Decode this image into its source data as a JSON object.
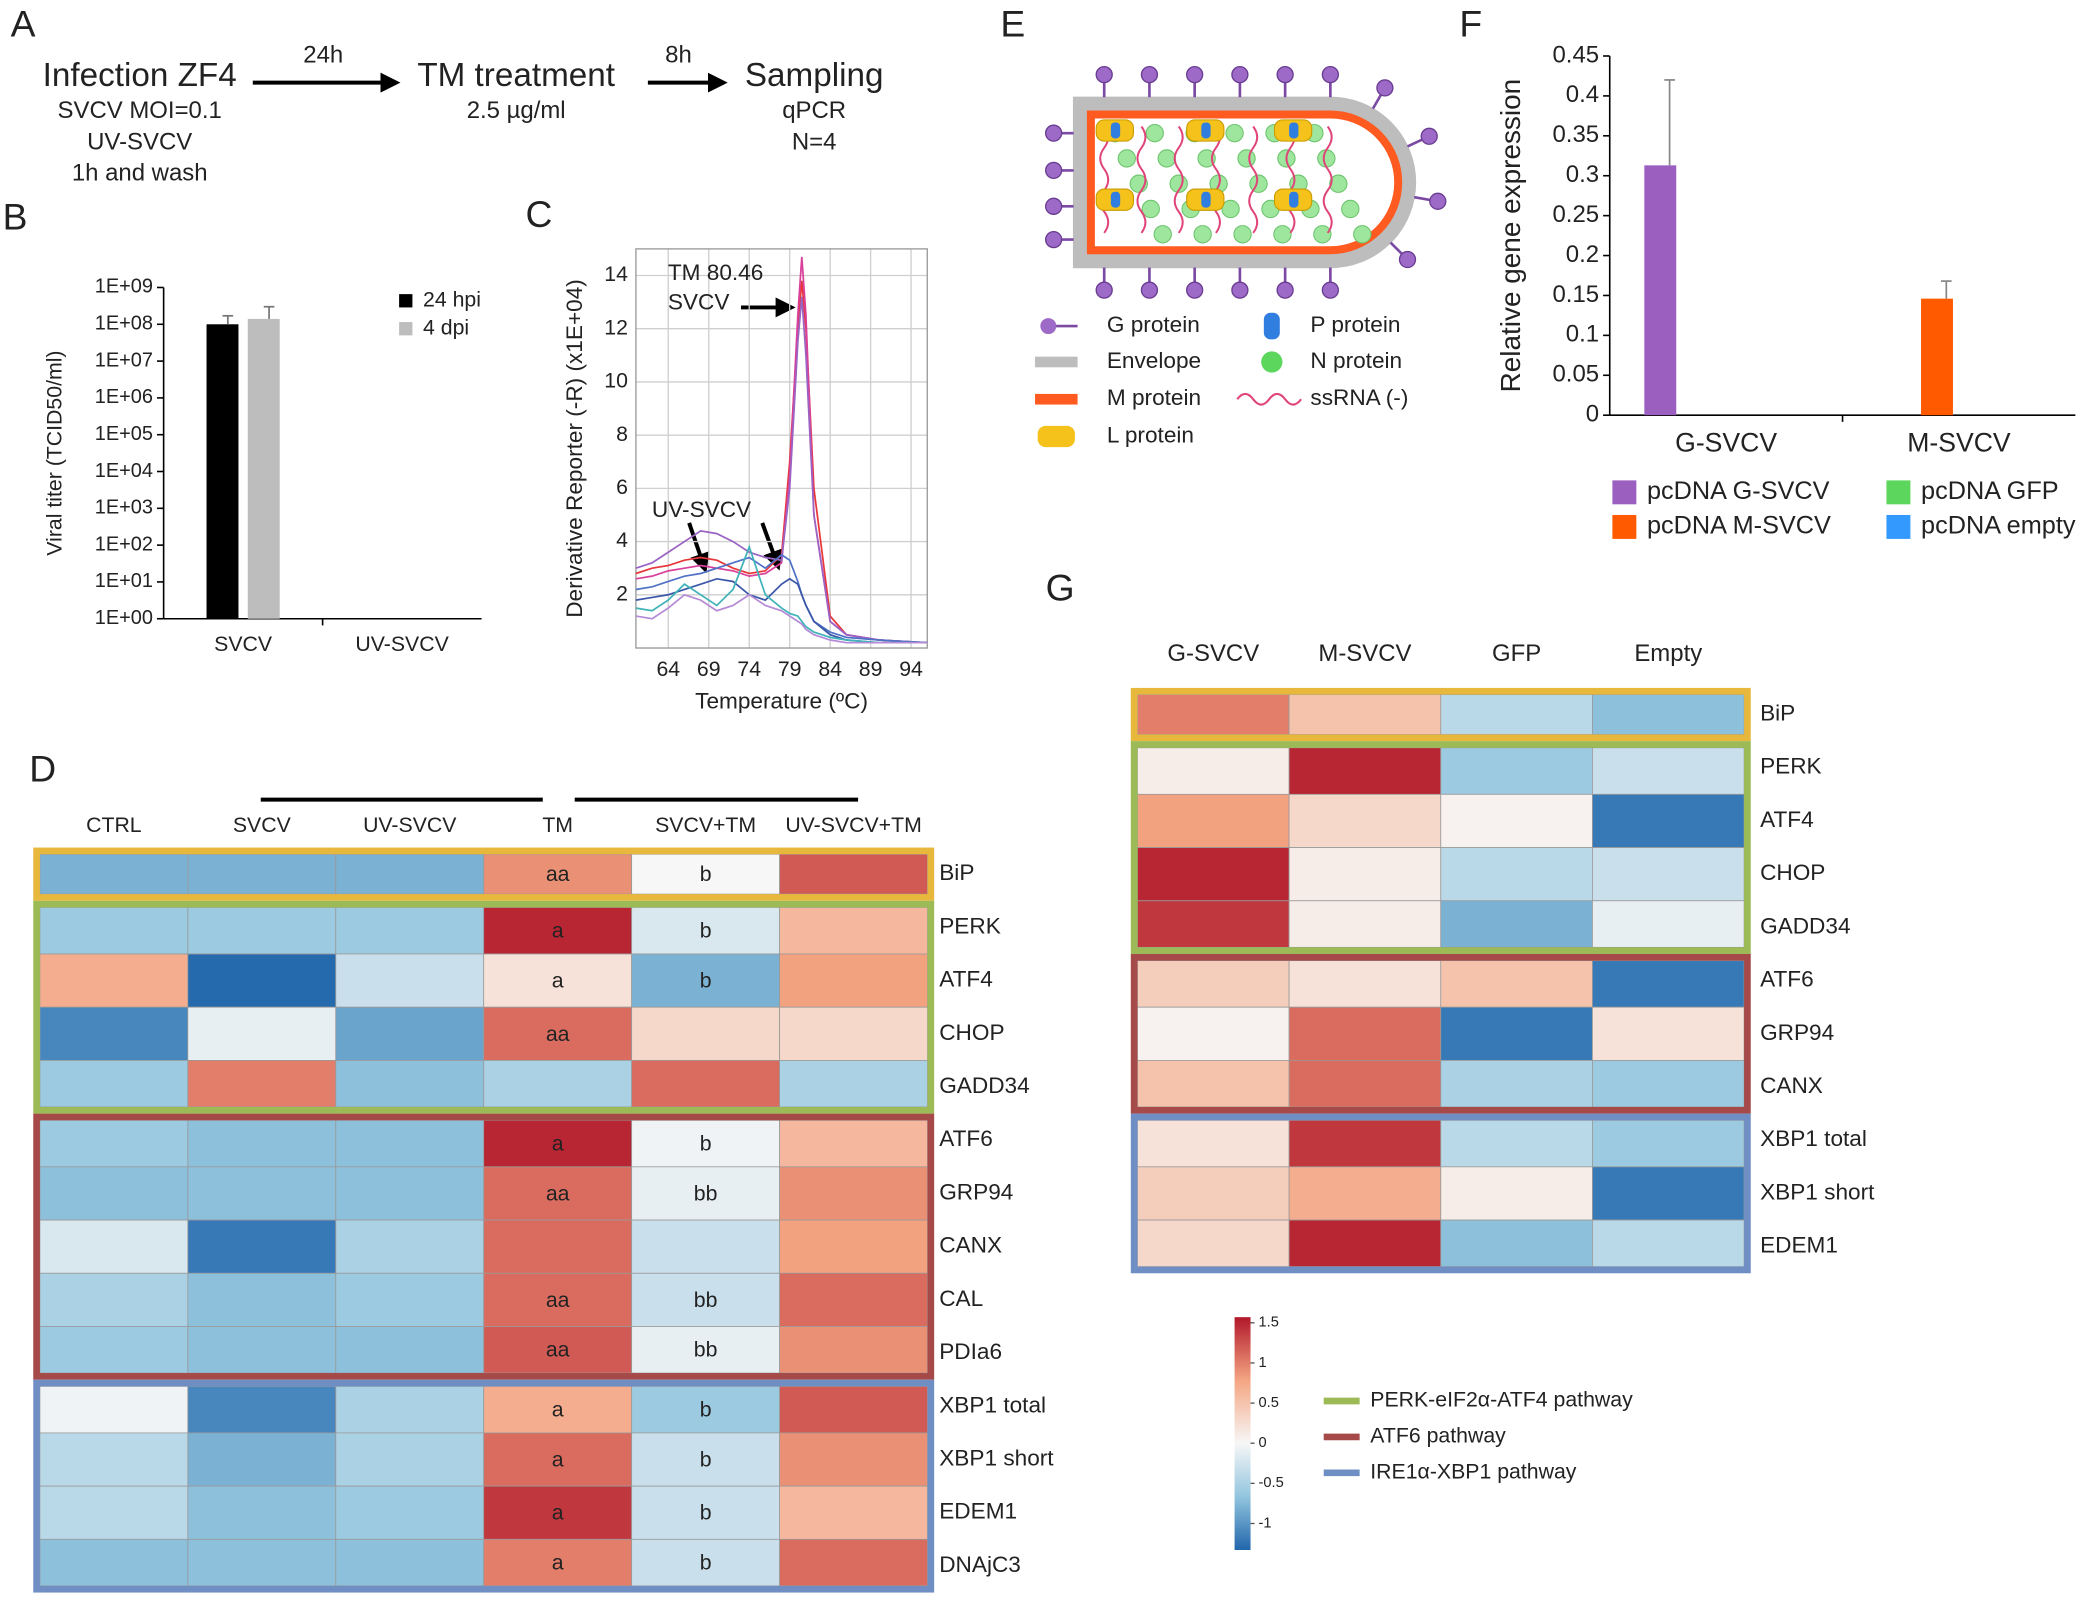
{
  "panel_labels": [
    "A",
    "B",
    "C",
    "D",
    "E",
    "F",
    "G"
  ],
  "workflow": {
    "steps": [
      {
        "title": "Infection ZF4",
        "lines": [
          "SVCV MOI=0.1",
          "UV-SVCV",
          "1h and wash"
        ]
      },
      {
        "title": "TM treatment",
        "lines": [
          "2.5 µg/ml"
        ]
      },
      {
        "title": "Sampling",
        "lines": [
          "qPCR",
          "N=4"
        ]
      }
    ],
    "intervals": [
      "24h",
      "8h"
    ]
  },
  "virus_legend": [
    "G protein",
    "Envelope",
    "M protein",
    "L protein",
    "P protein",
    "N protein",
    "ssRNA (-)"
  ],
  "pathways": [
    {
      "name": "PERK-eIF2α-ATF4 pathway",
      "color": "#9cba55"
    },
    {
      "name": "ATF6 pathway",
      "color": "#a54a48"
    },
    {
      "name": "IRE1α-XBP1 pathway",
      "color": "#6f8fc4"
    }
  ],
  "chart_data": [
    {
      "type": "bar",
      "ylabel": "Viral titer (TCID50/ml)",
      "categories": [
        "SVCV",
        "UV-SVCV"
      ],
      "series": [
        {
          "name": "24 hpi",
          "color": "#000000",
          "values": [
            100000000,
            null
          ],
          "errors": [
            70000000,
            null
          ]
        },
        {
          "name": "4 dpi",
          "color": "#bdbdbd",
          "values": [
            140000000,
            null
          ],
          "errors": [
            160000000,
            null
          ]
        }
      ],
      "ylim": [
        1,
        1000000000
      ],
      "yticks": [
        {
          "value": 1,
          "label": "1E+00"
        },
        {
          "value": 10,
          "label": "1E+01"
        },
        {
          "value": 100,
          "label": "1E+02"
        },
        {
          "value": 1000,
          "label": "1E+03"
        },
        {
          "value": 10000,
          "label": "1E+04"
        },
        {
          "value": 100000,
          "label": "1E+05"
        },
        {
          "value": 1000000,
          "label": "1E+06"
        },
        {
          "value": 10000000,
          "label": "1E+07"
        },
        {
          "value": 100000000,
          "label": "1E+08"
        },
        {
          "value": 1000000000,
          "label": "1E+09"
        }
      ],
      "log_y": true,
      "legend": "upper right"
    },
    {
      "type": "line",
      "annotations": [
        "TM 80.46",
        "SVCV",
        "UV-SVCV"
      ],
      "xlabel": "Temperature (ºC)",
      "ylabel": "Derivative Reporter (-R) (x1E+04)",
      "x": [
        60,
        62,
        64,
        66,
        68,
        70,
        72,
        74,
        76,
        78,
        79,
        80,
        80.5,
        81,
        82,
        84,
        86,
        90,
        96
      ],
      "series": [
        {
          "color": "#e8373a",
          "values": [
            2.8,
            3.0,
            3.1,
            3.3,
            3.4,
            3.3,
            3.0,
            2.8,
            2.9,
            3.5,
            7,
            12,
            13.8,
            12,
            6,
            1.2,
            0.5,
            0.3,
            0.2
          ]
        },
        {
          "color": "#d9409a",
          "values": [
            2.6,
            2.7,
            2.9,
            3.0,
            3.1,
            3.0,
            2.9,
            2.7,
            2.8,
            3.2,
            6.5,
            12.5,
            14.7,
            12.5,
            5,
            1.0,
            0.5,
            0.3,
            0.2
          ]
        },
        {
          "color": "#9a63c4",
          "values": [
            3.0,
            3.2,
            3.6,
            4.0,
            4.4,
            4.3,
            4.0,
            3.6,
            3.4,
            3.3,
            6,
            11.5,
            13.2,
            11,
            5,
            1.0,
            0.5,
            0.3,
            0.2
          ]
        },
        {
          "color": "#4f72c7",
          "values": [
            2.2,
            2.3,
            2.5,
            2.7,
            2.8,
            3.0,
            3.2,
            3.4,
            3.0,
            3.5,
            3.3,
            2.5,
            2.0,
            1.6,
            1.0,
            0.6,
            0.4,
            0.3,
            0.2
          ]
        },
        {
          "color": "#3a57a8",
          "values": [
            1.8,
            1.9,
            2.0,
            2.2,
            2.4,
            2.6,
            2.5,
            2.0,
            1.8,
            2.4,
            2.6,
            2.4,
            2.0,
            1.6,
            1.0,
            0.5,
            0.3,
            0.2,
            0.2
          ]
        },
        {
          "color": "#3fb3b8",
          "values": [
            1.5,
            1.4,
            1.8,
            2.4,
            2.0,
            1.6,
            2.2,
            3.8,
            2.0,
            1.5,
            1.3,
            1.2,
            1.0,
            0.8,
            0.6,
            0.4,
            0.3,
            0.2,
            0.2
          ]
        },
        {
          "color": "#b58ad6",
          "values": [
            1.2,
            1.1,
            1.5,
            2.0,
            1.8,
            1.4,
            1.6,
            2.0,
            1.6,
            1.4,
            1.2,
            1.0,
            0.9,
            0.7,
            0.5,
            0.3,
            0.2,
            0.2,
            0.2
          ]
        }
      ],
      "xlim": [
        60,
        96
      ],
      "ylim": [
        0,
        15
      ],
      "xticks": [
        64,
        69,
        74,
        79,
        84,
        89,
        94
      ],
      "yticks": [
        2,
        4,
        6,
        8,
        10,
        12,
        14
      ],
      "grid": true
    },
    {
      "type": "heatmap",
      "columns": [
        "CTRL",
        "SVCV",
        "UV-SVCV",
        "TM",
        "SVCV+TM",
        "UV-SVCV+TM"
      ],
      "rows": [
        "BiP",
        "PERK",
        "ATF4",
        "CHOP",
        "GADD34",
        "ATF6",
        "GRP94",
        "CANX",
        "CAL",
        "PDIa6",
        "XBP1 total",
        "XBP1 short",
        "EDEM1",
        "DNAjC3"
      ],
      "values": [
        [
          -0.8,
          -0.8,
          -0.8,
          0.9,
          0,
          1.2
        ],
        [
          -0.6,
          -0.6,
          -0.6,
          1.5,
          -0.2,
          0.6
        ],
        [
          0.7,
          -1.3,
          -0.3,
          0.2,
          -0.8,
          0.8
        ],
        [
          -1.1,
          -0.1,
          -0.9,
          1.1,
          0.3,
          0.3
        ],
        [
          -0.6,
          1.0,
          -0.7,
          -0.5,
          1.1,
          -0.5
        ],
        [
          -0.6,
          -0.7,
          -0.7,
          1.5,
          -0.05,
          0.6
        ],
        [
          -0.7,
          -0.7,
          -0.7,
          1.1,
          -0.1,
          0.9
        ],
        [
          -0.2,
          -1.2,
          -0.5,
          1.1,
          -0.3,
          0.8
        ],
        [
          -0.5,
          -0.7,
          -0.6,
          1.1,
          -0.3,
          1.1
        ],
        [
          -0.6,
          -0.7,
          -0.7,
          1.2,
          -0.1,
          0.9
        ],
        [
          -0.05,
          -1.1,
          -0.5,
          0.7,
          -0.6,
          1.2
        ],
        [
          -0.4,
          -0.8,
          -0.5,
          1.1,
          -0.3,
          0.9
        ],
        [
          -0.4,
          -0.7,
          -0.6,
          1.4,
          -0.3,
          0.6
        ],
        [
          -0.7,
          -0.7,
          -0.7,
          1.0,
          -0.3,
          1.1
        ]
      ],
      "cell_labels": [
        [
          null,
          null,
          null,
          "aa",
          "b",
          null
        ],
        [
          null,
          null,
          null,
          "a",
          "b",
          null
        ],
        [
          null,
          null,
          null,
          "a",
          "b",
          null
        ],
        [
          null,
          null,
          null,
          "aa",
          null,
          null
        ],
        [
          null,
          null,
          null,
          null,
          null,
          null
        ],
        [
          null,
          null,
          null,
          "a",
          "b",
          null
        ],
        [
          null,
          null,
          null,
          "aa",
          "bb",
          null
        ],
        [
          null,
          null,
          null,
          null,
          null,
          null
        ],
        [
          null,
          null,
          null,
          "aa",
          "bb",
          null
        ],
        [
          null,
          null,
          null,
          "aa",
          "bb",
          null
        ],
        [
          null,
          null,
          null,
          "a",
          "b",
          null
        ],
        [
          null,
          null,
          null,
          "a",
          "b",
          null
        ],
        [
          null,
          null,
          null,
          "a",
          "b",
          null
        ],
        [
          null,
          null,
          null,
          "a",
          "b",
          null
        ]
      ],
      "groups": [
        {
          "size": 1,
          "color": "#e8b83c"
        },
        {
          "size": 4,
          "color": "#9cba55"
        },
        {
          "size": 5,
          "color": "#a54a48"
        },
        {
          "size": 4,
          "color": "#6f8fc4"
        }
      ]
    },
    {
      "type": "bar",
      "ylabel": "Relative gene expression",
      "categories": [
        "G-SVCV",
        "M-SVCV"
      ],
      "series": [
        {
          "name": "pcDNA G-SVCV",
          "color": "#9b5fc0",
          "values": [
            0.313,
            null
          ],
          "errors": [
            0.107,
            null
          ]
        },
        {
          "name": "pcDNA M-SVCV",
          "color": "#ff5a00",
          "values": [
            null,
            0.146
          ],
          "errors": [
            null,
            0.022
          ]
        },
        {
          "name": "pcDNA GFP",
          "color": "#5cd65c",
          "values": [
            null,
            null
          ],
          "errors": [
            null,
            null
          ]
        },
        {
          "name": "pcDNA empty",
          "color": "#3399ff",
          "values": [
            null,
            null
          ],
          "errors": [
            null,
            null
          ]
        }
      ],
      "ylim": [
        0,
        0.45
      ],
      "yticks": [
        0,
        0.05,
        0.1,
        0.15,
        0.2,
        0.25,
        0.3,
        0.35,
        0.4,
        0.45
      ],
      "legend": "bottom"
    },
    {
      "type": "heatmap",
      "columns": [
        "G-SVCV",
        "M-SVCV",
        "GFP",
        "Empty"
      ],
      "rows": [
        "BiP",
        "PERK",
        "ATF4",
        "CHOP",
        "GADD34",
        "ATF6",
        "GRP94",
        "CANX",
        "XBP1 total",
        "XBP1 short",
        "EDEM1"
      ],
      "values": [
        [
          1.0,
          0.5,
          -0.4,
          -0.7
        ],
        [
          0.1,
          1.5,
          -0.6,
          -0.3
        ],
        [
          0.8,
          0.3,
          0.05,
          -1.2
        ],
        [
          1.5,
          0.1,
          -0.4,
          -0.3
        ],
        [
          1.4,
          0.1,
          -0.8,
          -0.1
        ],
        [
          0.4,
          0.2,
          0.5,
          -1.2
        ],
        [
          0.05,
          1.1,
          -1.2,
          0.2
        ],
        [
          0.5,
          1.1,
          -0.5,
          -0.6
        ],
        [
          0.2,
          1.4,
          -0.4,
          -0.6
        ],
        [
          0.4,
          0.7,
          0.1,
          -1.2
        ],
        [
          0.3,
          1.5,
          -0.7,
          -0.4
        ]
      ],
      "groups": [
        {
          "size": 1,
          "color": "#e8b83c"
        },
        {
          "size": 4,
          "color": "#9cba55"
        },
        {
          "size": 3,
          "color": "#a54a48"
        },
        {
          "size": 3,
          "color": "#6f8fc4"
        }
      ]
    },
    {
      "type": "colorbar",
      "ylim": [
        -1.33,
        1.57
      ],
      "yticks": [
        1.5,
        1,
        0.5,
        0,
        -0.5,
        -1
      ],
      "colors": [
        "#2166ac",
        "#92c5de",
        "#f7f7f7",
        "#f4a582",
        "#b2182b"
      ]
    }
  ]
}
